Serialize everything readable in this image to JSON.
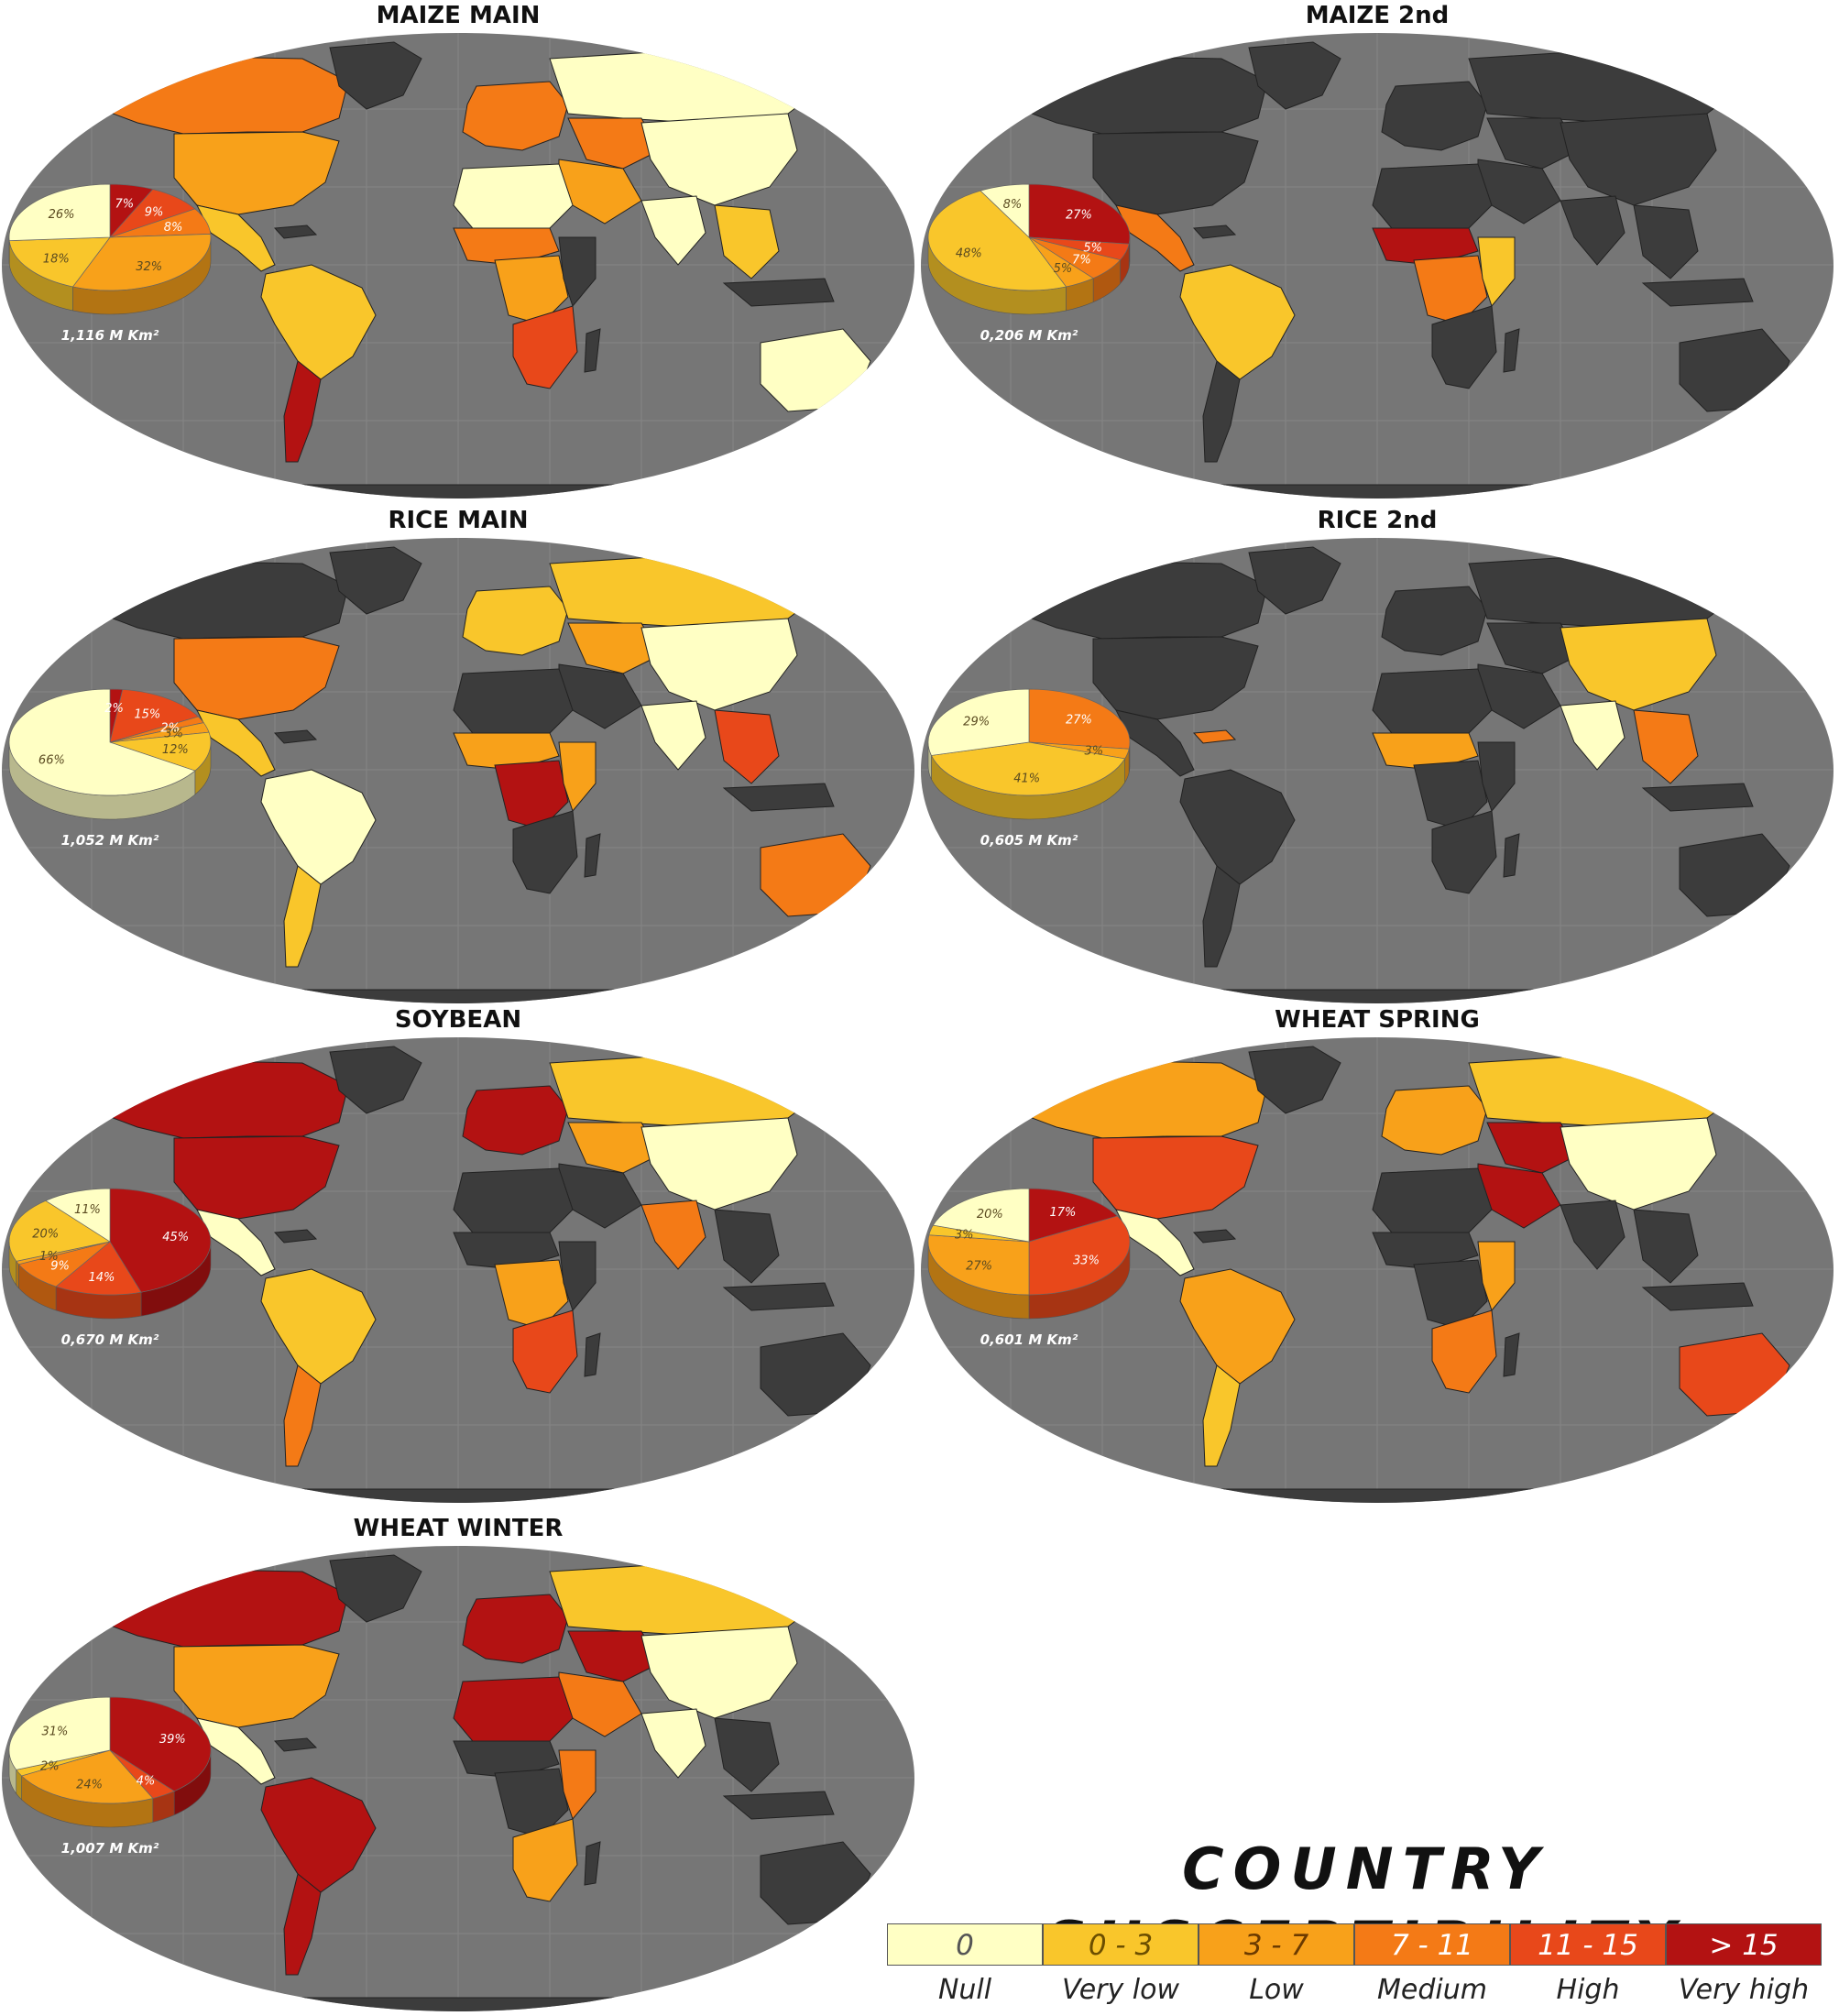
{
  "colors": {
    "ocean": "#767676",
    "land_nodata": "#3c3c3c",
    "null": "#ffffc4",
    "very_low": "#f9c62b",
    "low": "#f8a11a",
    "medium": "#f47a16",
    "high": "#e8481a",
    "very_high": "#b31212"
  },
  "legend": {
    "title": "COUNTRY SUSCEPTIBILITY",
    "classes": [
      {
        "range": "0",
        "name": "Null",
        "color": "#ffffc4",
        "text_color": "#555555"
      },
      {
        "range": "0 - 3",
        "name": "Very low",
        "color": "#f9c62b",
        "text_color": "#6b4e00"
      },
      {
        "range": "3 - 7",
        "name": "Low",
        "color": "#f8a11a",
        "text_color": "#6b3a00"
      },
      {
        "range": "7 - 11",
        "name": "Medium",
        "color": "#f47a16",
        "text_color": "#ffffff"
      },
      {
        "range": "11 - 15",
        "name": "High",
        "color": "#e8481a",
        "text_color": "#ffffff"
      },
      {
        "range": "> 15",
        "name": "Very high",
        "color": "#b31212",
        "text_color": "#ffffff"
      }
    ]
  },
  "maps": [
    {
      "title": "MAIZE MAIN",
      "area": "1,116 M Km²",
      "slices": [
        {
          "label": "7%",
          "value": 7,
          "cls": "very_high"
        },
        {
          "label": "9%",
          "value": 9,
          "cls": "high"
        },
        {
          "label": "8%",
          "value": 8,
          "cls": "medium"
        },
        {
          "label": "32%",
          "value": 32,
          "cls": "low"
        },
        {
          "label": "18%",
          "value": 18,
          "cls": "very_low"
        },
        {
          "label": "26%",
          "value": 26,
          "cls": "null"
        }
      ],
      "regions": {
        "north_america": "low",
        "canada": "medium",
        "central_america": "very_low",
        "south_america": "very_low",
        "southern_cone": "very_high",
        "europe": "medium",
        "russia": "null",
        "central_asia": "medium",
        "east_asia": "null",
        "south_asia": "null",
        "southeast_asia": "very_low",
        "africa_north": "null",
        "africa_sahel": "medium",
        "africa_central": "low",
        "africa_south": "high",
        "middle_east": "low",
        "australia": "null"
      }
    },
    {
      "title": "MAIZE 2nd",
      "area": "0,206 M Km²",
      "slices": [
        {
          "label": "27%",
          "value": 27,
          "cls": "very_high"
        },
        {
          "label": "5%",
          "value": 5,
          "cls": "high"
        },
        {
          "label": "7%",
          "value": 7,
          "cls": "medium"
        },
        {
          "label": "5%",
          "value": 5,
          "cls": "low"
        },
        {
          "label": "48%",
          "value": 48,
          "cls": "very_low"
        },
        {
          "label": "8%",
          "value": 8,
          "cls": "null"
        }
      ],
      "regions": {
        "central_america": "medium",
        "south_america": "very_low",
        "africa_sahel": "very_high",
        "africa_central": "medium",
        "africa_east": "very_low"
      }
    },
    {
      "title": "RICE MAIN",
      "area": "1,052 M Km²",
      "slices": [
        {
          "label": "2%",
          "value": 2,
          "cls": "very_high"
        },
        {
          "label": "15%",
          "value": 15,
          "cls": "high"
        },
        {
          "label": "2%",
          "value": 2,
          "cls": "medium"
        },
        {
          "label": "3%",
          "value": 3,
          "cls": "low"
        },
        {
          "label": "12%",
          "value": 12,
          "cls": "very_low"
        },
        {
          "label": "66%",
          "value": 66,
          "cls": "null"
        }
      ],
      "regions": {
        "north_america": "medium",
        "central_america": "very_low",
        "south_america": "null",
        "southern_cone": "very_low",
        "europe": "very_low",
        "russia": "very_low",
        "central_asia": "low",
        "east_asia": "null",
        "south_asia": "null",
        "southeast_asia": "high",
        "africa_sahel": "low",
        "africa_central": "very_high",
        "africa_east": "low",
        "australia": "medium"
      }
    },
    {
      "title": "RICE 2nd",
      "area": "0,605 M Km²",
      "slices": [
        {
          "label": "27%",
          "value": 27,
          "cls": "medium"
        },
        {
          "label": "3%",
          "value": 3,
          "cls": "low"
        },
        {
          "label": "41%",
          "value": 41,
          "cls": "very_low"
        },
        {
          "label": "29%",
          "value": 29,
          "cls": "null"
        }
      ],
      "regions": {
        "east_asia": "very_low",
        "south_asia": "null",
        "southeast_asia": "medium",
        "africa_sahel": "low",
        "caribbean": "medium"
      }
    },
    {
      "title": "SOYBEAN",
      "area": "0,670 M Km²",
      "slices": [
        {
          "label": "45%",
          "value": 45,
          "cls": "very_high"
        },
        {
          "label": "14%",
          "value": 14,
          "cls": "high"
        },
        {
          "label": "9%",
          "value": 9,
          "cls": "medium"
        },
        {
          "label": "1%",
          "value": 1,
          "cls": "low"
        },
        {
          "label": "20%",
          "value": 20,
          "cls": "very_low"
        },
        {
          "label": "11%",
          "value": 11,
          "cls": "null"
        }
      ],
      "regions": {
        "north_america": "very_high",
        "canada": "very_high",
        "central_america": "null",
        "south_america": "very_low",
        "southern_cone": "medium",
        "russia": "very_low",
        "central_asia": "low",
        "east_asia": "null",
        "south_asia": "medium",
        "africa_central": "low",
        "africa_south": "high",
        "europe": "very_high"
      }
    },
    {
      "title": "WHEAT SPRING",
      "area": "0,601 M Km²",
      "slices": [
        {
          "label": "17%",
          "value": 17,
          "cls": "very_high"
        },
        {
          "label": "33%",
          "value": 33,
          "cls": "high"
        },
        {
          "label": "27%",
          "value": 27,
          "cls": "low"
        },
        {
          "label": "3%",
          "value": 3,
          "cls": "very_low"
        },
        {
          "label": "20%",
          "value": 20,
          "cls": "null"
        }
      ],
      "regions": {
        "north_america": "high",
        "canada": "low",
        "central_america": "null",
        "south_america": "low",
        "southern_cone": "very_low",
        "europe": "low",
        "russia": "very_low",
        "central_asia": "very_high",
        "east_asia": "null",
        "middle_east": "very_high",
        "africa_east": "low",
        "africa_south": "medium",
        "australia": "high"
      }
    },
    {
      "title": "WHEAT WINTER",
      "area": "1,007 M Km²",
      "slices": [
        {
          "label": "39%",
          "value": 39,
          "cls": "very_high"
        },
        {
          "label": "4%",
          "value": 4,
          "cls": "high"
        },
        {
          "label": "24%",
          "value": 24,
          "cls": "low"
        },
        {
          "label": "2%",
          "value": 2,
          "cls": "very_low"
        },
        {
          "label": "31%",
          "value": 31,
          "cls": "null"
        }
      ],
      "regions": {
        "north_america": "low",
        "canada": "very_high",
        "central_america": "null",
        "south_america": "very_high",
        "southern_cone": "very_high",
        "europe": "very_high",
        "russia": "very_low",
        "central_asia": "very_high",
        "east_asia": "null",
        "south_asia": "null",
        "africa_north": "very_high",
        "africa_east": "medium",
        "africa_south": "low",
        "middle_east": "medium"
      }
    }
  ]
}
